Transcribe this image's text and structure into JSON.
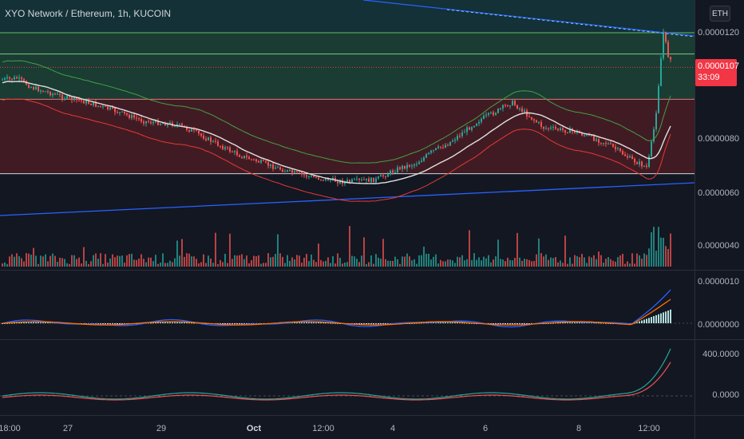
{
  "chart": {
    "title": "XYO Network / Ethereum, 1h, KUCOIN",
    "currency": "ETH"
  },
  "price_tag": {
    "price": "0.0000107",
    "countdown": "33:09"
  },
  "price_axis": [
    "0.0000120",
    "0.0000080",
    "0.0000060",
    "0.0000040"
  ],
  "macd_axis": [
    "0.0000010",
    "0.0000000"
  ],
  "osc_axis": [
    "400.0000",
    "0.0000"
  ],
  "time_axis": [
    "18:00",
    "27",
    "29",
    "Oct",
    "12:00",
    "4",
    "6",
    "8",
    "12:00"
  ],
  "colors": {
    "background": "#131722",
    "up": "#26a69a",
    "down": "#ef5350",
    "trendline": "#2962ff",
    "green_zone": "#1e4a3a",
    "red_zone": "#4a1c23",
    "price_tag": "#f23645"
  },
  "chart_data": {
    "type": "candlestick",
    "title": "XYO Network / Ethereum, 1h, KUCOIN",
    "y_range": [
      3.3e-06,
      1.27e-05
    ],
    "horizontal_levels": [
      1.2e-05,
      1.12e-05,
      9.5e-06,
      6.7e-06
    ],
    "last_price": 1.07e-05,
    "macd_range": [
      -2e-07,
      1.1e-06
    ],
    "osc_range": [
      -60,
      480
    ],
    "x_ticks": [
      "18:00",
      "27",
      "29",
      "Oct",
      "12:00",
      "4",
      "6",
      "8",
      "12:00"
    ]
  }
}
